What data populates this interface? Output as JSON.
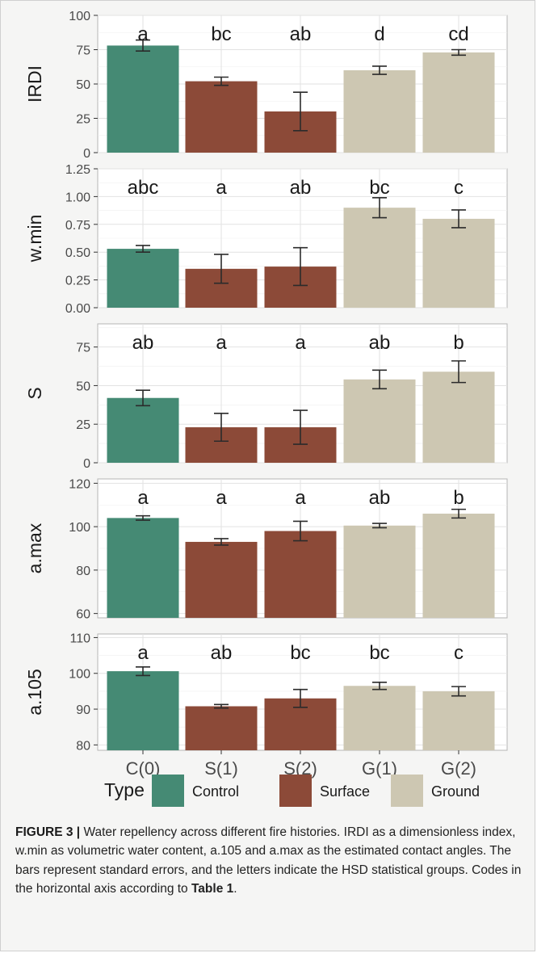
{
  "chart_data": [
    {
      "type": "bar",
      "ylabel": "IRDI",
      "categories": [
        "C(0)",
        "S(1)",
        "S(2)",
        "G(1)",
        "G(2)"
      ],
      "values": [
        78,
        52,
        30,
        60,
        73
      ],
      "errors": [
        4,
        3,
        14,
        3,
        2
      ],
      "groups": [
        "a",
        "bc",
        "ab",
        "d",
        "cd"
      ],
      "ylim": [
        0,
        100
      ],
      "yticks": [
        "0",
        "25",
        "50",
        "75",
        "100"
      ]
    },
    {
      "type": "bar",
      "ylabel": "w.min",
      "categories": [
        "C(0)",
        "S(1)",
        "S(2)",
        "G(1)",
        "G(2)"
      ],
      "values": [
        0.53,
        0.35,
        0.37,
        0.9,
        0.8
      ],
      "errors": [
        0.03,
        0.13,
        0.17,
        0.09,
        0.08
      ],
      "groups": [
        "abc",
        "a",
        "ab",
        "bc",
        "c"
      ],
      "ylim": [
        0,
        1.25
      ],
      "yticks": [
        "0.00",
        "0.25",
        "0.50",
        "0.75",
        "1.00",
        "1.25"
      ]
    },
    {
      "type": "bar",
      "ylabel": "S",
      "categories": [
        "C(0)",
        "S(1)",
        "S(2)",
        "G(1)",
        "G(2)"
      ],
      "values": [
        42,
        23,
        23,
        54,
        59
      ],
      "errors": [
        5,
        9,
        11,
        6,
        7
      ],
      "groups": [
        "ab",
        "a",
        "a",
        "ab",
        "b"
      ],
      "ylim": [
        0,
        90
      ],
      "yticks": [
        "0",
        "25",
        "50",
        "75"
      ]
    },
    {
      "type": "bar",
      "ylabel": "a.max",
      "categories": [
        "C(0)",
        "S(1)",
        "S(2)",
        "G(1)",
        "G(2)"
      ],
      "values": [
        104,
        93,
        98,
        100.5,
        106
      ],
      "errors": [
        1,
        1.5,
        4.5,
        1,
        2
      ],
      "groups": [
        "a",
        "a",
        "a",
        "ab",
        "b"
      ],
      "ylim": [
        58,
        122
      ],
      "yticks": [
        "60",
        "80",
        "100",
        "120"
      ]
    },
    {
      "type": "bar",
      "ylabel": "a.105",
      "categories": [
        "C(0)",
        "S(1)",
        "S(2)",
        "G(1)",
        "G(2)"
      ],
      "values": [
        100.6,
        90.8,
        93,
        96.5,
        95
      ],
      "errors": [
        1.2,
        0.5,
        2.5,
        1,
        1.3
      ],
      "groups": [
        "a",
        "ab",
        "bc",
        "bc",
        "c"
      ],
      "ylim": [
        78.5,
        111
      ],
      "yticks": [
        "80",
        "90",
        "100",
        "110"
      ]
    }
  ],
  "x_tick_labels": [
    "C(0)",
    "S(1)",
    "S(2)",
    "G(1)",
    "G(2)"
  ],
  "legend": {
    "title": "Type",
    "items": [
      {
        "label": "Control",
        "color": "#458a74"
      },
      {
        "label": "Surface",
        "color": "#8c4a38"
      },
      {
        "label": "Ground",
        "color": "#cdc7b2"
      }
    ]
  },
  "bar_colors": [
    "#458a74",
    "#8c4a38",
    "#8c4a38",
    "#cdc7b2",
    "#cdc7b2"
  ],
  "caption": {
    "label": "FIGURE 3 |",
    "text": " Water repellency across different fire histories. IRDI as a dimensionless index, w.min as volumetric water content, a.105 and a.max as the estimated contact angles. The bars represent standard errors, and the letters indicate the HSD statistical groups. Codes in the horizontal axis according to ",
    "ref": "Table 1",
    "end": "."
  }
}
